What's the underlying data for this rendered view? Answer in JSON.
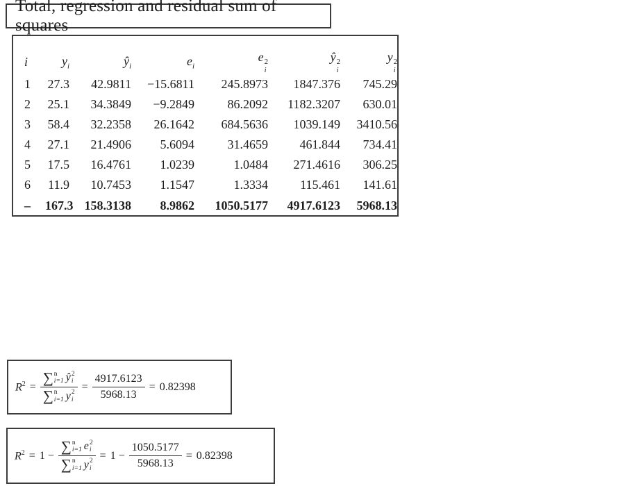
{
  "title": "Total, regression and residual sum of squares",
  "table": {
    "headers": [
      {
        "base": "i",
        "sup": "",
        "sub": ""
      },
      {
        "base": "y",
        "sup": "",
        "sub": "i"
      },
      {
        "base": "ŷ",
        "sup": "",
        "sub": "i"
      },
      {
        "base": "e",
        "sup": "",
        "sub": "i"
      },
      {
        "base": "e",
        "sup": "2",
        "sub": "i"
      },
      {
        "base": "ŷ",
        "sup": "2",
        "sub": "i"
      },
      {
        "base": "y",
        "sup": "2",
        "sub": "i"
      }
    ],
    "rows": [
      [
        "1",
        "27.3",
        "42.9811",
        "−15.6811",
        "245.8973",
        "1847.376",
        "745.29"
      ],
      [
        "2",
        "25.1",
        "34.3849",
        "−9.2849",
        "86.2092",
        "1182.3207",
        "630.01"
      ],
      [
        "3",
        "58.4",
        "32.2358",
        "26.1642",
        "684.5636",
        "1039.149",
        "3410.56"
      ],
      [
        "4",
        "27.1",
        "21.4906",
        "5.6094",
        "31.4659",
        "461.844",
        "734.41"
      ],
      [
        "5",
        "17.5",
        "16.4761",
        "1.0239",
        "1.0484",
        "271.4616",
        "306.25"
      ],
      [
        "6",
        "11.9",
        "10.7453",
        "1.1547",
        "1.3334",
        "115.461",
        "141.61"
      ]
    ],
    "total_row": [
      "–",
      "167.3",
      "158.3138",
      "8.9862",
      "1050.5177",
      "4917.6123",
      "5968.13"
    ]
  },
  "formulas": {
    "box1": {
      "lhs_base": "R",
      "lhs_sup": "2",
      "equals": "=",
      "frac_sym": {
        "num": {
          "sum": "∑",
          "sum_sup": "n",
          "sum_sub": "i=1",
          "var": "ŷ",
          "var_sup": "2",
          "var_sub": "i"
        },
        "den": {
          "sum": "∑",
          "sum_sup": "n",
          "sum_sub": "i=1",
          "var": "y",
          "var_sup": "2",
          "var_sub": "i"
        }
      },
      "frac_num": {
        "num": "4917.6123",
        "den": "5968.13"
      },
      "result": "0.82398"
    },
    "box2": {
      "lhs_base": "R",
      "lhs_sup": "2",
      "equals": "=",
      "one_minus": "1 −",
      "frac_sym": {
        "num": {
          "sum": "∑",
          "sum_sup": "n",
          "sum_sub": "i=1",
          "var": "e",
          "var_sup": "2",
          "var_sub": "i"
        },
        "den": {
          "sum": "∑",
          "sum_sup": "n",
          "sum_sub": "i=1",
          "var": "y",
          "var_sup": "2",
          "var_sub": "i"
        }
      },
      "one_minus_2": "1 −",
      "frac_num": {
        "num": "1050.5177",
        "den": "5968.13"
      },
      "result": "0.82398"
    }
  },
  "colors": {
    "background": "#ffffff",
    "text": "#1d1d1d",
    "border": "#3c3c3c"
  }
}
